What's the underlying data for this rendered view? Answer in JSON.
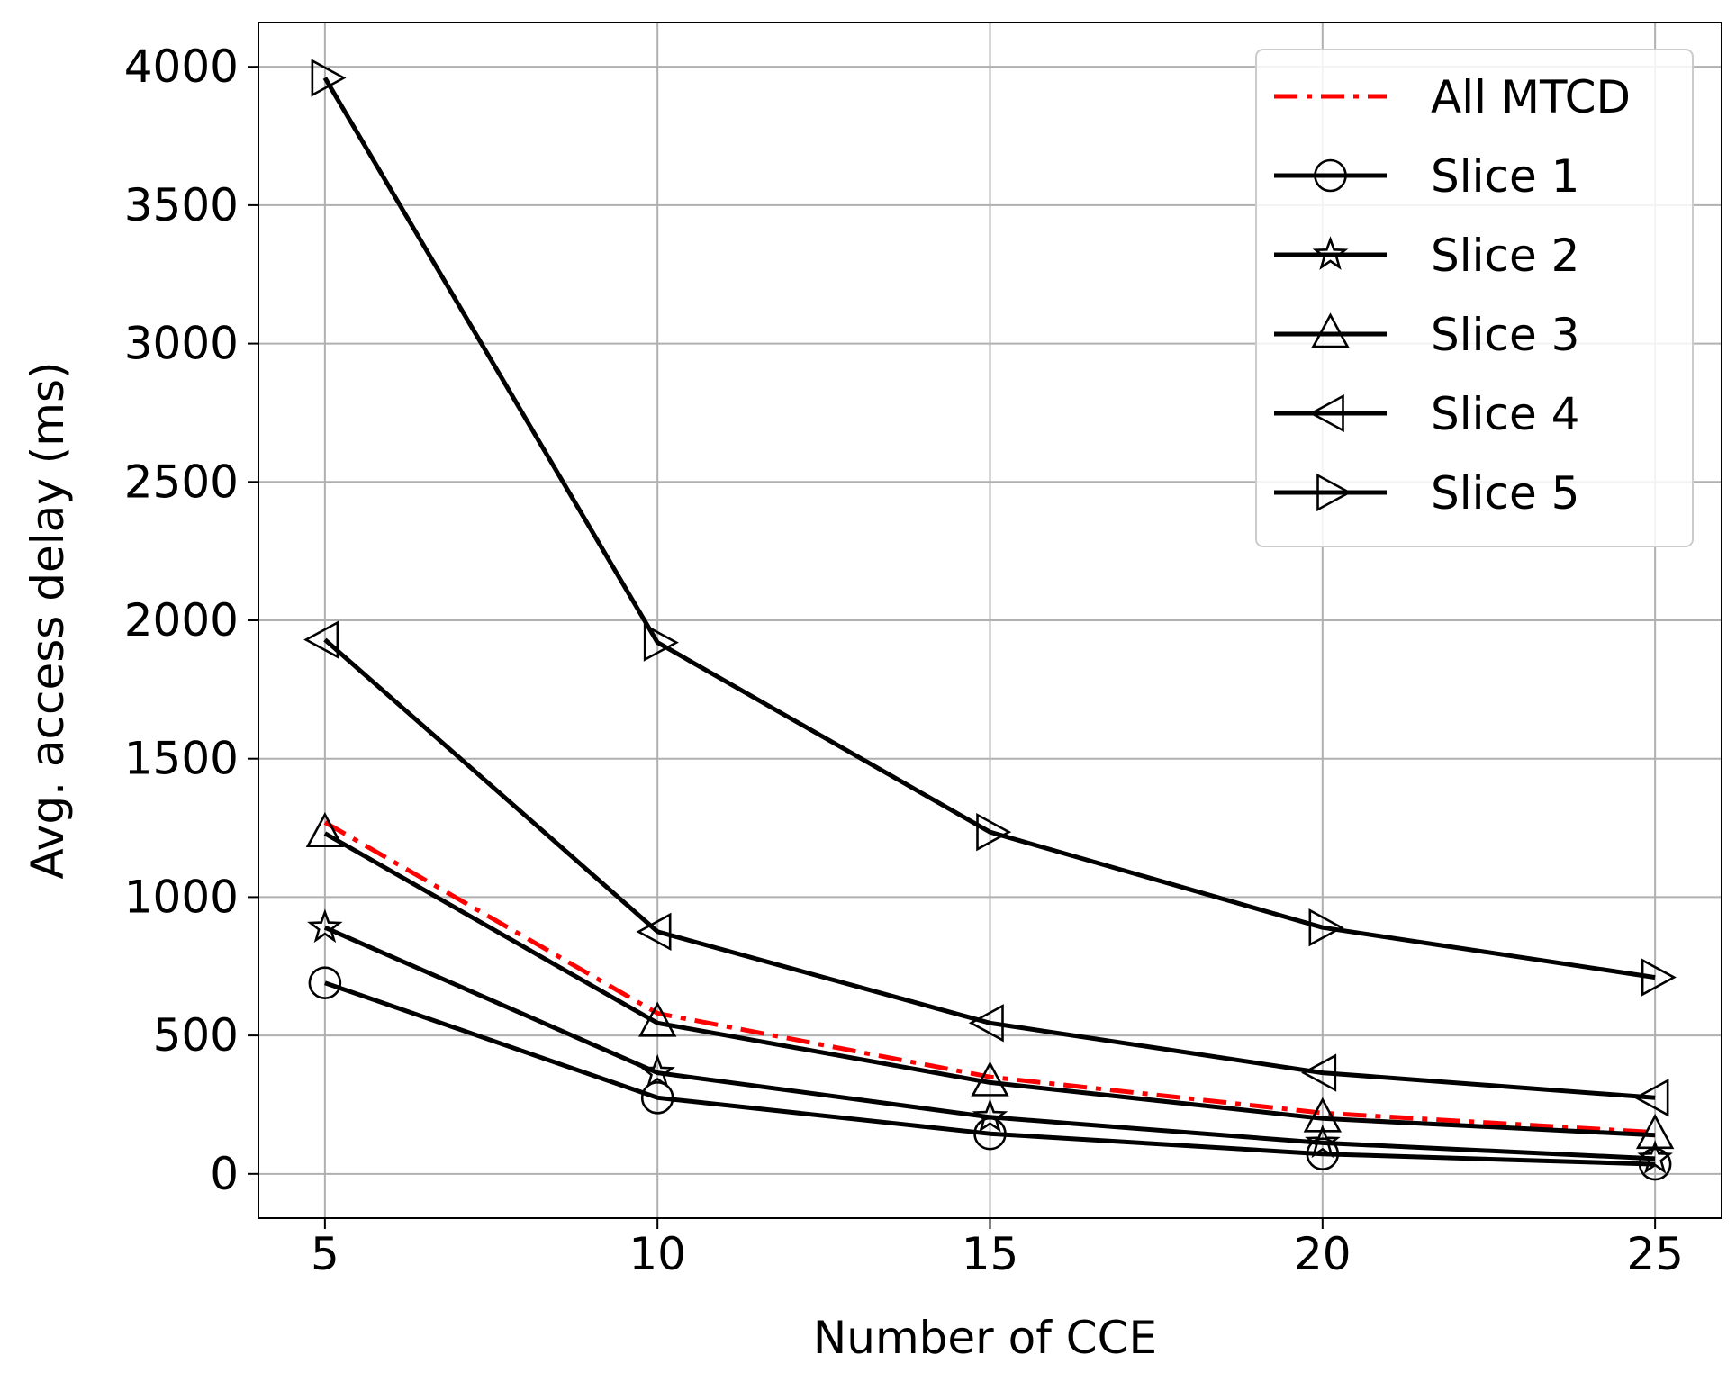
{
  "chart_data": {
    "type": "line",
    "title": "",
    "xlabel": "Number of CCE",
    "ylabel": "Avg. access delay (ms)",
    "x": [
      5,
      10,
      15,
      20,
      25
    ],
    "xlim": [
      4,
      26
    ],
    "ylim": [
      -160,
      4160
    ],
    "xticks": [
      5,
      10,
      15,
      20,
      25
    ],
    "yticks": [
      0,
      500,
      1000,
      1500,
      2000,
      2500,
      3000,
      3500,
      4000
    ],
    "grid": true,
    "legend_position": "top-right",
    "series": [
      {
        "name": "All MTCD",
        "values": [
          1270,
          580,
          350,
          220,
          150
        ],
        "color": "#ff0000",
        "dash": "dashdot",
        "marker": "none"
      },
      {
        "name": "Slice 1",
        "values": [
          690,
          275,
          145,
          72,
          35
        ],
        "color": "#000000",
        "dash": "solid",
        "marker": "circle"
      },
      {
        "name": "Slice 2",
        "values": [
          890,
          365,
          205,
          112,
          55
        ],
        "color": "#000000",
        "dash": "solid",
        "marker": "star"
      },
      {
        "name": "Slice 3",
        "values": [
          1230,
          545,
          330,
          200,
          140
        ],
        "color": "#000000",
        "dash": "solid",
        "marker": "triangle-up"
      },
      {
        "name": "Slice 4",
        "values": [
          1930,
          875,
          545,
          365,
          275
        ],
        "color": "#000000",
        "dash": "solid",
        "marker": "triangle-left"
      },
      {
        "name": "Slice 5",
        "values": [
          3960,
          1920,
          1235,
          890,
          710
        ],
        "color": "#000000",
        "dash": "solid",
        "marker": "triangle-right"
      }
    ]
  }
}
